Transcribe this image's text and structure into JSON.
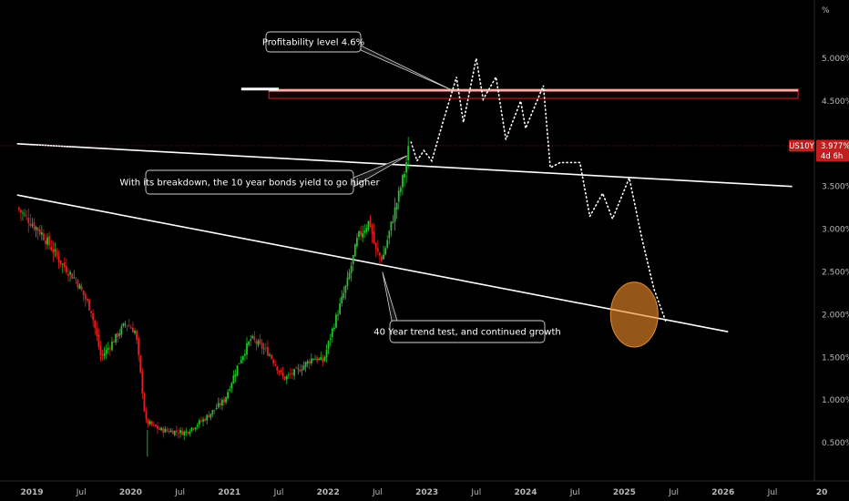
{
  "chart_data": {
    "type": "candlestick",
    "symbol": "US10Y",
    "unit_label": "%",
    "last_value_label": "3.977%",
    "countdown_label": "4d 6h",
    "last_value": 3.977,
    "ylim": [
      0.2,
      5.6
    ],
    "xlim": [
      2018.9,
      2027.2
    ],
    "y_ticks": [
      {
        "v": 5.0,
        "label": "5.000%"
      },
      {
        "v": 4.5,
        "label": "4.500%"
      },
      {
        "v": 3.5,
        "label": "3.500%"
      },
      {
        "v": 3.0,
        "label": "3.000%"
      },
      {
        "v": 2.5,
        "label": "2.500%"
      },
      {
        "v": 2.0,
        "label": "2.000%"
      },
      {
        "v": 1.5,
        "label": "1.500%"
      },
      {
        "v": 1.0,
        "label": "1.000%"
      },
      {
        "v": 0.5,
        "label": "0.500%"
      }
    ],
    "x_ticks": [
      {
        "t": 2019.0,
        "label": "2019",
        "bold": true
      },
      {
        "t": 2019.5,
        "label": "Jul",
        "bold": false
      },
      {
        "t": 2020.0,
        "label": "2020",
        "bold": true
      },
      {
        "t": 2020.5,
        "label": "Jul",
        "bold": false
      },
      {
        "t": 2021.0,
        "label": "2021",
        "bold": true
      },
      {
        "t": 2021.5,
        "label": "Jul",
        "bold": false
      },
      {
        "t": 2022.0,
        "label": "2022",
        "bold": true
      },
      {
        "t": 2022.5,
        "label": "Jul",
        "bold": false
      },
      {
        "t": 2023.0,
        "label": "2023",
        "bold": true
      },
      {
        "t": 2023.5,
        "label": "Jul",
        "bold": false
      },
      {
        "t": 2024.0,
        "label": "2024",
        "bold": true
      },
      {
        "t": 2024.5,
        "label": "Jul",
        "bold": false
      },
      {
        "t": 2025.0,
        "label": "2025",
        "bold": true
      },
      {
        "t": 2025.5,
        "label": "Jul",
        "bold": false
      },
      {
        "t": 2026.0,
        "label": "2026",
        "bold": true
      },
      {
        "t": 2026.5,
        "label": "Jul",
        "bold": false
      },
      {
        "t": 2027.0,
        "label": "20",
        "bold": true
      }
    ],
    "close_path": [
      [
        2018.85,
        3.25
      ],
      [
        2019.1,
        2.95
      ],
      [
        2019.3,
        2.6
      ],
      [
        2019.45,
        2.4
      ],
      [
        2019.6,
        2.05
      ],
      [
        2019.7,
        1.5
      ],
      [
        2019.8,
        1.65
      ],
      [
        2019.95,
        1.9
      ],
      [
        2020.05,
        1.8
      ],
      [
        2020.12,
        1.1
      ],
      [
        2020.15,
        0.75
      ],
      [
        2020.3,
        0.65
      ],
      [
        2020.55,
        0.62
      ],
      [
        2020.75,
        0.78
      ],
      [
        2020.95,
        1.0
      ],
      [
        2021.1,
        1.45
      ],
      [
        2021.22,
        1.72
      ],
      [
        2021.4,
        1.55
      ],
      [
        2021.55,
        1.25
      ],
      [
        2021.7,
        1.35
      ],
      [
        2021.85,
        1.5
      ],
      [
        2021.95,
        1.45
      ],
      [
        2022.05,
        1.85
      ],
      [
        2022.2,
        2.4
      ],
      [
        2022.3,
        2.9
      ],
      [
        2022.42,
        3.1
      ],
      [
        2022.48,
        2.75
      ],
      [
        2022.55,
        2.65
      ],
      [
        2022.65,
        3.1
      ],
      [
        2022.78,
        3.7
      ],
      [
        2022.83,
        4.05
      ]
    ],
    "forecast_path": [
      [
        2022.84,
        4.02
      ],
      [
        2022.9,
        3.8
      ],
      [
        2022.97,
        3.92
      ],
      [
        2023.05,
        3.8
      ],
      [
        2023.17,
        4.28
      ],
      [
        2023.3,
        4.78
      ],
      [
        2023.37,
        4.25
      ],
      [
        2023.5,
        5.0
      ],
      [
        2023.57,
        4.52
      ],
      [
        2023.7,
        4.78
      ],
      [
        2023.8,
        4.05
      ],
      [
        2023.95,
        4.5
      ],
      [
        2024.0,
        4.18
      ],
      [
        2024.18,
        4.68
      ],
      [
        2024.25,
        3.72
      ],
      [
        2024.35,
        3.78
      ],
      [
        2024.55,
        3.78
      ],
      [
        2024.65,
        3.15
      ],
      [
        2024.78,
        3.42
      ],
      [
        2024.88,
        3.12
      ],
      [
        2025.05,
        3.6
      ],
      [
        2025.18,
        2.88
      ],
      [
        2025.3,
        2.3
      ],
      [
        2025.42,
        1.92
      ]
    ],
    "resistance_zone": {
      "from": 2021.4,
      "to": 2026.76,
      "low": 4.53,
      "high": 4.64
    },
    "resistance_line": {
      "from": 2021.12,
      "to": 2021.5,
      "value": 4.64
    },
    "trend_lines": [
      {
        "x1": 2018.85,
        "y1": 4.0,
        "x2": 2026.7,
        "y2": 3.5
      },
      {
        "x1": 2018.85,
        "y1": 3.4,
        "x2": 2026.05,
        "y2": 1.8
      }
    ],
    "target_ellipse": {
      "t": 2025.1,
      "v": 2.0,
      "rt": 0.24,
      "rv": 0.38
    },
    "annotations": [
      {
        "text": "Profitability level 4.6%",
        "point": [
          2023.25,
          4.63
        ]
      },
      {
        "text": "With its breakdown, the 10 year bonds yield to go higher",
        "point": [
          2022.8,
          3.86
        ]
      },
      {
        "text": "40 Year trend test, and continued growth",
        "point": [
          2022.55,
          2.5
        ]
      }
    ]
  }
}
